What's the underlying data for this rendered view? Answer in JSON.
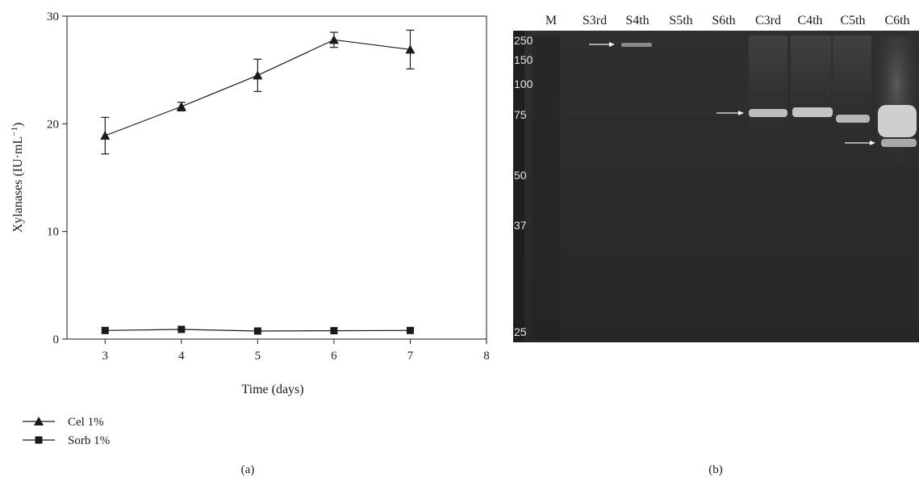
{
  "panels": {
    "a_label": "(a)",
    "b_label": "(b)"
  },
  "chart_data": [
    {
      "type": "line",
      "xlabel": "Time (days)",
      "ylabel_main": "Xylanases (IU·mL",
      "ylabel_sup": "−1",
      "ylabel_tail": ")",
      "xlim": [
        2.5,
        8
      ],
      "ylim": [
        0,
        30
      ],
      "x_ticks": [
        3,
        4,
        5,
        6,
        7,
        8
      ],
      "y_ticks": [
        0,
        10,
        20,
        30
      ],
      "grid": false,
      "legend_position": "bottom-left",
      "series": [
        {
          "name": "Cel 1%",
          "marker": "triangle",
          "x": [
            3,
            4,
            5,
            6,
            7
          ],
          "values": [
            18.9,
            21.6,
            24.5,
            27.8,
            26.9
          ],
          "error": [
            1.7,
            0.4,
            1.5,
            0.7,
            1.8
          ]
        },
        {
          "name": "Sorb 1%",
          "marker": "square",
          "x": [
            3,
            4,
            5,
            6,
            7
          ],
          "values": [
            0.8,
            0.9,
            0.75,
            0.78,
            0.8
          ],
          "error": [
            0,
            0,
            0,
            0,
            0
          ]
        }
      ]
    }
  ],
  "gel": {
    "lanes": [
      "M",
      "S3rd",
      "S4th",
      "S5th",
      "S6th",
      "C3rd",
      "C4th",
      "C5th",
      "C6th"
    ],
    "markers": [
      "250",
      "150",
      "100",
      "75",
      "50",
      "37",
      "25"
    ]
  }
}
